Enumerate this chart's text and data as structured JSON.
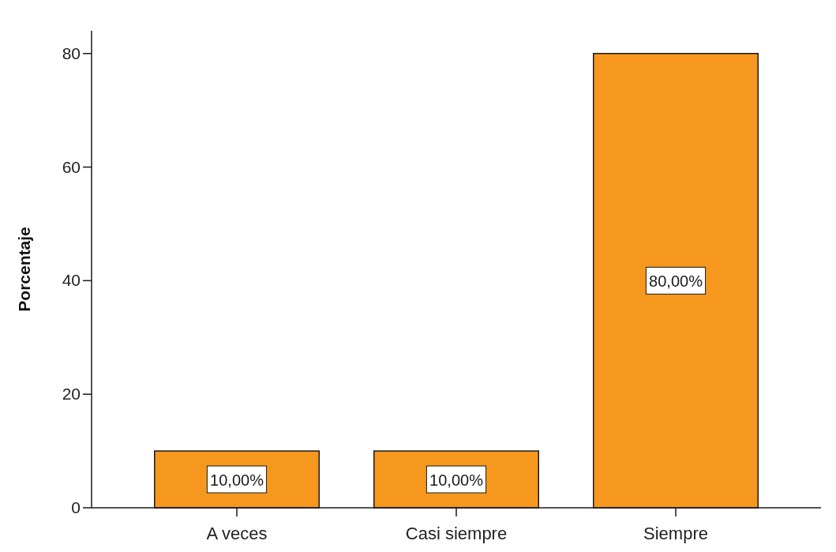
{
  "chart_data": {
    "type": "bar",
    "ylabel": "Porcentaje",
    "categories": [
      "A veces",
      "Casi siempre",
      "Siempre"
    ],
    "values": [
      10,
      10,
      80
    ],
    "color": "#f7981e",
    "ylim": [
      0,
      84
    ],
    "yticks": [
      0,
      20,
      40,
      60,
      80
    ],
    "value_labels": [
      "10,00%",
      "10,00%",
      "80,00%"
    ]
  }
}
